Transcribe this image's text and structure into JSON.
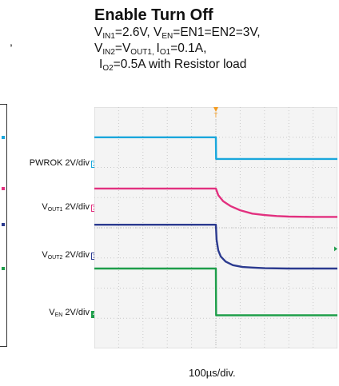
{
  "chart_data": {
    "type": "line",
    "title": "Enable Turn Off",
    "conditions": {
      "line1": {
        "a": "V",
        "a_sub": "IN1",
        "b": "=2.6V, V",
        "b_sub": "EN",
        "c": "=EN1=EN2=3V,"
      },
      "line2": {
        "a": "V",
        "a_sub": "IN2",
        "b": "=V",
        "b_sub": "OUT1, ",
        "c": "I",
        "c_sub": "O1",
        "d": "=0.1A,"
      },
      "line3": {
        "a": "I",
        "a_sub": "O2",
        "b": "=0.5A with Resistor load"
      }
    },
    "xlabel": "100µs/div.",
    "x_divisions": 10,
    "y_divisions": 8,
    "x_range_us": [
      0,
      1000
    ],
    "y_range_div": [
      0,
      8
    ],
    "grid": true,
    "trigger_marker": "T",
    "trigger_x_us": 500,
    "left_fragment": ",",
    "series": [
      {
        "id": "ch2",
        "ch": "2",
        "name": "PWROK",
        "scale_value": "2V/div",
        "color": "#1aa7dc",
        "box": "outline",
        "x": [
          0,
          500,
          501,
          1000
        ],
        "y": [
          7.0,
          7.0,
          6.28,
          6.28
        ]
      },
      {
        "id": "ch3",
        "ch": "3",
        "name": "V",
        "name_sub": "OUT1",
        "scale_value": "2V/div",
        "color": "#e2307f",
        "box": "outline",
        "x": [
          0,
          500,
          510,
          530,
          560,
          600,
          650,
          700,
          750,
          800,
          900,
          1000
        ],
        "y": [
          5.3,
          5.3,
          5.08,
          4.88,
          4.72,
          4.58,
          4.47,
          4.42,
          4.39,
          4.37,
          4.36,
          4.36
        ]
      },
      {
        "id": "ch1",
        "ch": "1",
        "name": "V",
        "name_sub": "OUT2",
        "scale_value": "2V/div",
        "color": "#2b3a8f",
        "box": "outline",
        "x": [
          0,
          500,
          503,
          510,
          520,
          540,
          570,
          610,
          650,
          700,
          800,
          1000
        ],
        "y": [
          4.1,
          4.1,
          3.6,
          3.25,
          3.05,
          2.88,
          2.76,
          2.7,
          2.68,
          2.66,
          2.65,
          2.65
        ]
      },
      {
        "id": "ch4",
        "ch": "4",
        "name": "V",
        "name_sub": "EN",
        "scale_value": "2V/div",
        "color": "#1e9e4a",
        "box": "fill",
        "x": [
          0,
          500,
          501,
          1000
        ],
        "y": [
          2.65,
          2.65,
          1.1,
          1.1
        ]
      }
    ]
  }
}
